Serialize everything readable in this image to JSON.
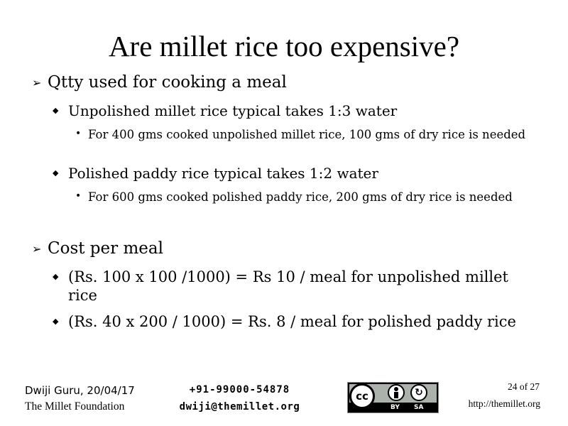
{
  "slide": {
    "title": "Are millet rice too expensive?"
  },
  "sections": [
    {
      "heading": "Qtty used for cooking a meal",
      "items": [
        {
          "text": "Unpolished millet rice typical takes 1:3 water",
          "sub": "For 400 gms cooked unpolished millet rice, 100 gms of dry rice is needed"
        },
        {
          "text": "Polished paddy rice typical takes 1:2 water",
          "sub": "For 600 gms cooked polished paddy rice, 200 gms of dry rice is needed"
        }
      ]
    },
    {
      "heading": "Cost per meal",
      "items": [
        {
          "text": "(Rs. 100 x 100 /1000) = Rs 10 / meal for unpolished millet rice"
        },
        {
          "text": "(Rs. 40 x 200 / 1000) = Rs. 8 / meal for polished paddy rice"
        }
      ]
    }
  ],
  "bullets": {
    "level1": "➢",
    "level2": "◆",
    "level3": "•"
  },
  "footer": {
    "author": "Dwiji Guru, 20/04/17",
    "organization": "The Millet Foundation",
    "phone": "+91-99000-54878",
    "email": "dwiji@themillet.org",
    "page": "24 of 27",
    "website": "http://themillet.org",
    "license": {
      "cc": "cc",
      "by": "BY",
      "sa": "SA",
      "icons": [
        "cc-icon",
        "attribution-icon",
        "share-alike-icon"
      ]
    }
  }
}
